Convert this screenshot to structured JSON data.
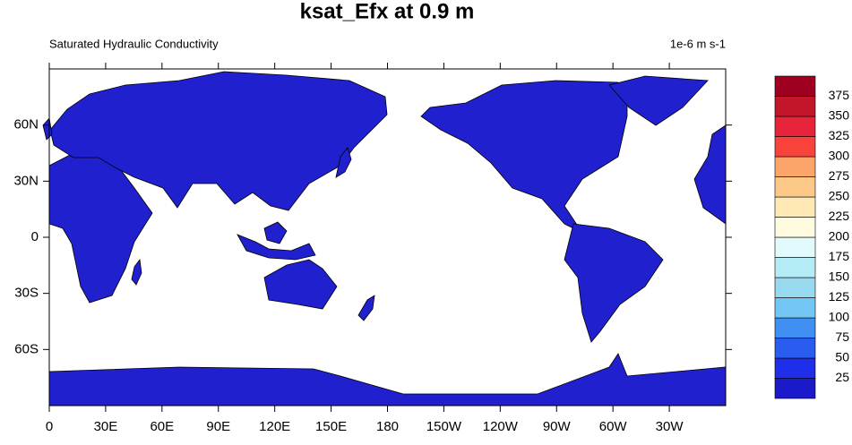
{
  "title": "ksat_Efx at 0.9 m",
  "subtitle": "Saturated Hydraulic Conductivity",
  "units": "1e-6 m s-1",
  "map": {
    "xlim": [
      0,
      360
    ],
    "ylim": [
      -90,
      90
    ],
    "xticks": [
      0,
      {
        "value": 30,
        "label": "30E"
      },
      {
        "value": 60,
        "label": "60E"
      },
      {
        "value": 90,
        "label": "90E"
      },
      {
        "value": 120,
        "label": "120E"
      },
      {
        "value": 150,
        "label": "150E"
      },
      180,
      {
        "value": 210,
        "label": "150W"
      },
      {
        "value": 240,
        "label": "120W"
      },
      {
        "value": 270,
        "label": "90W"
      },
      {
        "value": 300,
        "label": "60W"
      },
      {
        "value": 330,
        "label": "30W"
      }
    ],
    "yticks": [
      {
        "value": 60,
        "label": "60N"
      },
      {
        "value": 30,
        "label": "30N"
      },
      0,
      {
        "value": -30,
        "label": "30S"
      },
      {
        "value": -60,
        "label": "60S"
      }
    ]
  },
  "colorbar": {
    "levels": [
      25,
      50,
      75,
      100,
      125,
      150,
      175,
      200,
      225,
      250,
      275,
      300,
      325,
      350,
      375
    ],
    "colors": [
      "#1a1acb",
      "#1f2ee8",
      "#2a5cf0",
      "#3f8ff2",
      "#72c7f5",
      "#98d9f0",
      "#b3ecf5",
      "#e2fafb",
      "#fefbe0",
      "#fee9b5",
      "#fdc988",
      "#fca56a",
      "#f9423a",
      "#e8243a",
      "#c4162a",
      "#a00020"
    ]
  }
}
